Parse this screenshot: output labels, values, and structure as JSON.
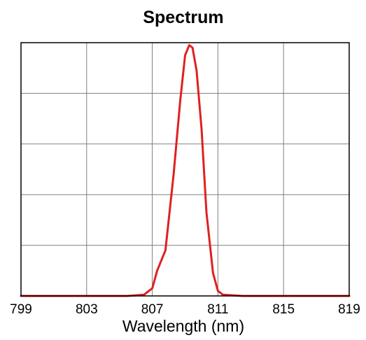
{
  "chart_data": {
    "type": "line",
    "title": "Spectrum",
    "xlabel": "Wavelength (nm)",
    "ylabel": "",
    "xlim": [
      799,
      819
    ],
    "ylim": [
      0,
      1
    ],
    "x_ticks": [
      799,
      803,
      807,
      811,
      815,
      819
    ],
    "y_gridlines": [
      0.2,
      0.4,
      0.6,
      0.8
    ],
    "grid": true,
    "legend": "none",
    "series": [
      {
        "color": "#e02020",
        "x": [
          799,
          805.5,
          806.5,
          807.0,
          807.3,
          807.8,
          808.3,
          808.7,
          809.0,
          809.25,
          809.45,
          809.7,
          810.0,
          810.3,
          810.7,
          811.0,
          811.3,
          812.5,
          819
        ],
        "y": [
          0,
          0,
          0.005,
          0.03,
          0.1,
          0.18,
          0.48,
          0.77,
          0.95,
          0.99,
          0.98,
          0.89,
          0.66,
          0.33,
          0.09,
          0.02,
          0.005,
          0,
          0
        ]
      }
    ]
  }
}
